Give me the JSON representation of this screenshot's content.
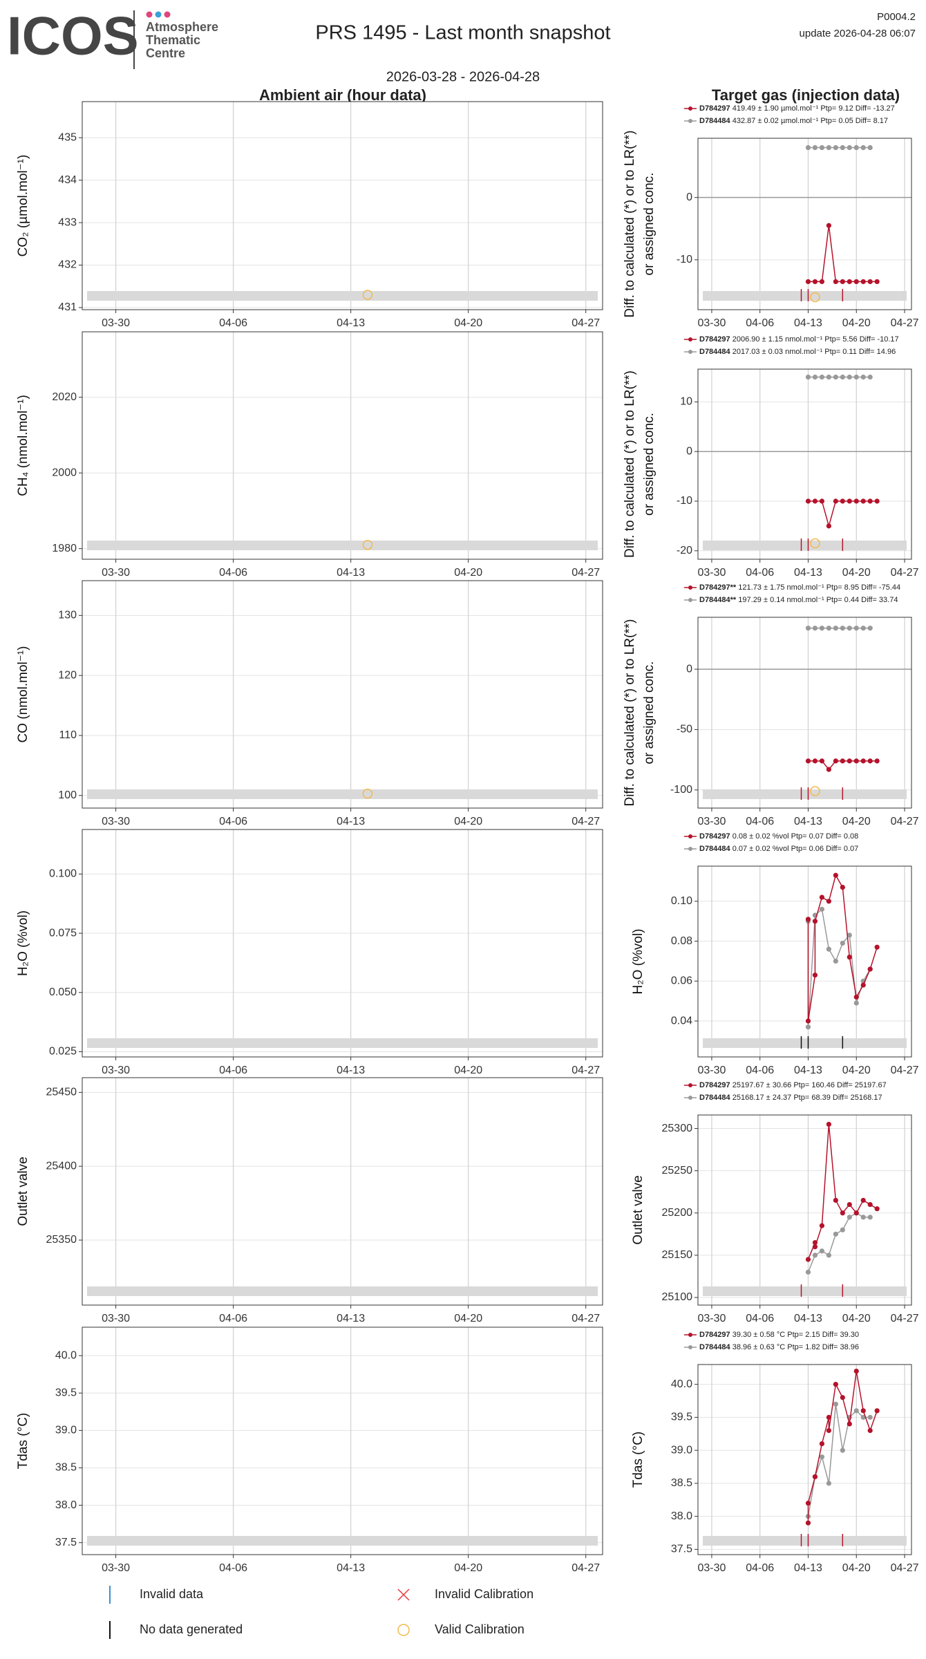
{
  "header": {
    "logo": "ICOS",
    "logo_sub": [
      "Atmosphere",
      "Thematic",
      "Centre"
    ],
    "title": "PRS 1495 - Last month snapshot",
    "date_range": "2026-03-28 - 2026-04-28",
    "code": "P0004.2",
    "update": "update  2026-04-28 06:07",
    "left_title": "Ambient air (hour data)",
    "right_title": "Target gas (injection data)"
  },
  "legend": [
    "Invalid data",
    "No data generated",
    "Invalid Calibration",
    "Valid Calibration"
  ],
  "chart_data": [
    {
      "type": "line",
      "ylabel": "CO₂ (µmol.mol⁻¹)",
      "xlim": [
        "03-28",
        "04-28"
      ],
      "xticks": [
        "03-30",
        "04-06",
        "04-13",
        "04-20",
        "04-27"
      ],
      "ylim": [
        430.95,
        435.85
      ],
      "yticks": [
        431,
        432,
        433,
        434,
        435
      ],
      "grid": true,
      "series": [],
      "calibration": {
        "x": [
          "04-14"
        ],
        "y": [
          431.3
        ],
        "color": "#f2b94a"
      }
    },
    {
      "type": "line",
      "ylabel": [
        "Diff. to calculated (*) or to LR(**)",
        "or assigned conc."
      ],
      "xlim": [
        "03-28",
        "04-28"
      ],
      "xticks": [
        "03-30",
        "04-06",
        "04-13",
        "04-20",
        "04-27"
      ],
      "ylim": [
        -18,
        9.5
      ],
      "yticks": [
        -10,
        0
      ],
      "grid": true,
      "series": [
        {
          "name": "D784297",
          "stats": "419.49 ± 1.90 µmol.mol⁻¹ Ptp= 9.12 Diff= -13.27",
          "color": "#b5122b",
          "x": [
            "04-13",
            "04-14",
            "04-15",
            "04-16",
            "04-17",
            "04-18",
            "04-19",
            "04-20",
            "04-21",
            "04-22",
            "04-23"
          ],
          "values": [
            -13.5,
            -13.5,
            -13.5,
            -4.5,
            -13.5,
            -13.5,
            -13.5,
            -13.5,
            -13.5,
            -13.5,
            -13.5
          ]
        },
        {
          "name": "D784484",
          "stats": "432.87 ± 0.02 µmol.mol⁻¹ Ptp= 0.05 Diff= 8.17",
          "color": "#999999",
          "x": [
            "04-13",
            "04-14",
            "04-15",
            "04-16",
            "04-17",
            "04-18",
            "04-19",
            "04-20",
            "04-21",
            "04-22"
          ],
          "values": [
            8,
            8,
            8,
            8,
            8,
            8,
            8,
            8,
            8,
            8
          ]
        }
      ],
      "flags": {
        "x": [
          "04-12",
          "04-13",
          "04-18"
        ],
        "color": "#b5122b"
      },
      "calibration": {
        "x": [
          "04-14"
        ],
        "y": [
          -16
        ],
        "color": "#f2b94a"
      }
    },
    {
      "type": "line",
      "ylabel": "CH₄ (nmol.mol⁻¹)",
      "xlim": [
        "03-28",
        "04-28"
      ],
      "xticks": [
        "03-30",
        "04-06",
        "04-13",
        "04-20",
        "04-27"
      ],
      "ylim": [
        1977.2,
        2037.3
      ],
      "yticks": [
        1980,
        2000,
        2020
      ],
      "grid": true,
      "series": [],
      "calibration": {
        "x": [
          "04-14"
        ],
        "y": [
          1981
        ],
        "color": "#f2b94a"
      }
    },
    {
      "type": "line",
      "ylabel": [
        "Diff. to calculated (*) or to LR(**)",
        "or assigned conc."
      ],
      "xlim": [
        "03-28",
        "04-28"
      ],
      "xticks": [
        "03-30",
        "04-06",
        "04-13",
        "04-20",
        "04-27"
      ],
      "ylim": [
        -21.7,
        16.6
      ],
      "yticks": [
        -20,
        -10,
        0,
        10
      ],
      "grid": true,
      "series": [
        {
          "name": "D784297",
          "stats": "2006.90 ± 1.15 nmol.mol⁻¹ Ptp= 5.56 Diff= -10.17",
          "color": "#b5122b",
          "x": [
            "04-13",
            "04-14",
            "04-15",
            "04-16",
            "04-17",
            "04-18",
            "04-19",
            "04-20",
            "04-21",
            "04-22",
            "04-23"
          ],
          "values": [
            -10,
            -10,
            -10,
            -15,
            -10,
            -10,
            -10,
            -10,
            -10,
            -10,
            -10
          ]
        },
        {
          "name": "D784484",
          "stats": "2017.03 ± 0.03 nmol.mol⁻¹ Ptp= 0.11 Diff= 14.96",
          "color": "#999999",
          "x": [
            "04-13",
            "04-14",
            "04-15",
            "04-16",
            "04-17",
            "04-18",
            "04-19",
            "04-20",
            "04-21",
            "04-22"
          ],
          "values": [
            15,
            15,
            15,
            15,
            15,
            15,
            15,
            15,
            15,
            15
          ]
        }
      ],
      "flags": {
        "x": [
          "04-12",
          "04-13",
          "04-18"
        ],
        "color": "#b5122b"
      },
      "calibration": {
        "x": [
          "04-14"
        ],
        "y": [
          -18.5
        ],
        "color": "#f2b94a"
      }
    },
    {
      "type": "line",
      "ylabel": "CO (nmol.mol⁻¹)",
      "xlim": [
        "03-28",
        "04-28"
      ],
      "xticks": [
        "03-30",
        "04-06",
        "04-13",
        "04-20",
        "04-27"
      ],
      "ylim": [
        97.9,
        135.8
      ],
      "yticks": [
        100,
        110,
        120,
        130
      ],
      "grid": true,
      "series": [],
      "calibration": {
        "x": [
          "04-14"
        ],
        "y": [
          100.3
        ],
        "color": "#f2b94a"
      }
    },
    {
      "type": "line",
      "ylabel": [
        "Diff. to calculated (*) or to LR(**)",
        "or assigned conc."
      ],
      "xlim": [
        "03-28",
        "04-28"
      ],
      "xticks": [
        "03-30",
        "04-06",
        "04-13",
        "04-20",
        "04-27"
      ],
      "ylim": [
        -115,
        43
      ],
      "yticks": [
        -100,
        -50,
        0
      ],
      "grid": true,
      "series": [
        {
          "name": "D784297**",
          "stats": "121.73 ± 1.75 nmol.mol⁻¹ Ptp= 8.95 Diff= -75.44",
          "color": "#b5122b",
          "x": [
            "04-13",
            "04-14",
            "04-15",
            "04-16",
            "04-17",
            "04-18",
            "04-19",
            "04-20",
            "04-21",
            "04-22",
            "04-23"
          ],
          "values": [
            -76,
            -76,
            -76,
            -83,
            -76,
            -76,
            -76,
            -76,
            -76,
            -76,
            -76
          ]
        },
        {
          "name": "D784484**",
          "stats": "197.29 ± 0.14 nmol.mol⁻¹ Ptp= 0.44 Diff= 33.74",
          "color": "#999999",
          "x": [
            "04-13",
            "04-14",
            "04-15",
            "04-16",
            "04-17",
            "04-18",
            "04-19",
            "04-20",
            "04-21",
            "04-22"
          ],
          "values": [
            34,
            34,
            34,
            34,
            34,
            34,
            34,
            34,
            34,
            34
          ]
        }
      ],
      "flags": {
        "x": [
          "04-12",
          "04-13",
          "04-18"
        ],
        "color": "#b5122b"
      },
      "calibration": {
        "x": [
          "04-14"
        ],
        "y": [
          -101
        ],
        "color": "#f2b94a"
      }
    },
    {
      "type": "line",
      "ylabel": "H₂O (%vol)",
      "xlim": [
        "03-28",
        "04-28"
      ],
      "xticks": [
        "03-30",
        "04-06",
        "04-13",
        "04-20",
        "04-27"
      ],
      "ylim": [
        0.0228,
        0.1188
      ],
      "yticks": [
        {
          "value": 0.025,
          "label": "0.025"
        },
        {
          "value": 0.05,
          "label": "0.050"
        },
        {
          "value": 0.075,
          "label": "0.075"
        },
        {
          "value": 0.1,
          "label": "0.100"
        }
      ],
      "grid": true,
      "series": []
    },
    {
      "type": "line",
      "ylabel": "H₂O (%vol)",
      "xlim": [
        "03-28",
        "04-28"
      ],
      "xticks": [
        "03-30",
        "04-06",
        "04-13",
        "04-20",
        "04-27"
      ],
      "ylim": [
        0.022,
        0.1176
      ],
      "yticks": [
        0.04,
        0.06,
        0.08,
        {
          "value": 0.1,
          "label": "0.10"
        }
      ],
      "grid": true,
      "series": [
        {
          "name": "D784297",
          "stats": "0.08 ± 0.02 %vol Ptp= 0.07 Diff= 0.08",
          "color": "#b5122b",
          "x": [
            "04-13",
            "04-13",
            "04-14",
            "04-14",
            "04-15",
            "04-16",
            "04-17",
            "04-18",
            "04-19",
            "04-20",
            "04-21",
            "04-22",
            "04-23"
          ],
          "values": [
            0.091,
            0.04,
            0.063,
            0.09,
            0.102,
            0.1,
            0.113,
            0.107,
            0.072,
            0.052,
            0.058,
            0.066,
            0.077
          ]
        },
        {
          "name": "D784484",
          "stats": "0.07 ± 0.02 %vol Ptp= 0.06 Diff= 0.07",
          "color": "#999999",
          "x": [
            "04-13",
            "04-13",
            "04-14",
            "04-15",
            "04-16",
            "04-17",
            "04-18",
            "04-19",
            "04-20",
            "04-21",
            "04-22"
          ],
          "values": [
            0.09,
            0.037,
            0.093,
            0.096,
            0.076,
            0.07,
            0.079,
            0.083,
            0.049,
            0.06,
            0.066
          ]
        }
      ],
      "flags": {
        "x": [
          "04-12",
          "04-13",
          "04-18"
        ],
        "color": "#111111"
      }
    },
    {
      "type": "line",
      "ylabel": "Outlet valve",
      "xlim": [
        "03-28",
        "04-28"
      ],
      "xticks": [
        "03-30",
        "04-06",
        "04-13",
        "04-20",
        "04-27"
      ],
      "ylim": [
        25306,
        25460
      ],
      "yticks": [
        25350,
        25400,
        25450
      ],
      "grid": true,
      "series": []
    },
    {
      "type": "line",
      "ylabel": "Outlet valve",
      "xlim": [
        "03-28",
        "04-28"
      ],
      "xticks": [
        "03-30",
        "04-06",
        "04-13",
        "04-20",
        "04-27"
      ],
      "ylim": [
        25091,
        25316
      ],
      "yticks": [
        25100,
        25150,
        25200,
        25250,
        25300
      ],
      "grid": true,
      "series": [
        {
          "name": "D784297",
          "stats": "25197.67 ± 30.66  Ptp= 160.46 Diff= 25197.67",
          "color": "#b5122b",
          "x": [
            "04-13",
            "04-14",
            "04-14",
            "04-15",
            "04-16",
            "04-17",
            "04-18",
            "04-19",
            "04-20",
            "04-21",
            "04-22",
            "04-23"
          ],
          "values": [
            25145,
            25165,
            25160,
            25185,
            25305,
            25215,
            25200,
            25210,
            25200,
            25215,
            25210,
            25205
          ]
        },
        {
          "name": "D784484",
          "stats": "25168.17 ± 24.37  Ptp= 68.39 Diff= 25168.17",
          "color": "#999999",
          "x": [
            "04-13",
            "04-14",
            "04-15",
            "04-16",
            "04-17",
            "04-18",
            "04-19",
            "04-20",
            "04-21",
            "04-22"
          ],
          "values": [
            25130,
            25150,
            25155,
            25150,
            25175,
            25180,
            25195,
            25200,
            25195,
            25195
          ]
        }
      ],
      "flags": {
        "x": [
          "04-12",
          "04-18"
        ],
        "color": "#b5122b"
      }
    },
    {
      "type": "line",
      "ylabel": "Tdas (°C)",
      "xlim": [
        "03-28",
        "04-28"
      ],
      "xticks": [
        "03-30",
        "04-06",
        "04-13",
        "04-20",
        "04-27"
      ],
      "ylim": [
        37.34,
        40.38
      ],
      "yticks": [
        37.5,
        {
          "value": 38,
          "label": "38.0"
        },
        38.5,
        {
          "value": 39,
          "label": "39.0"
        },
        39.5,
        {
          "value": 40,
          "label": "40.0"
        }
      ],
      "grid": true,
      "series": []
    },
    {
      "type": "line",
      "ylabel": "Tdas (°C)",
      "xlim": [
        "03-28",
        "04-28"
      ],
      "xticks": [
        "03-30",
        "04-06",
        "04-13",
        "04-20",
        "04-27"
      ],
      "ylim": [
        37.42,
        40.3
      ],
      "yticks": [
        37.5,
        {
          "value": 38,
          "label": "38.0"
        },
        38.5,
        {
          "value": 39,
          "label": "39.0"
        },
        39.5,
        {
          "value": 40,
          "label": "40.0"
        }
      ],
      "grid": true,
      "series": [
        {
          "name": "D784297",
          "stats": "39.30 ± 0.58 °C Ptp= 2.15 Diff= 39.30",
          "color": "#b5122b",
          "x": [
            "04-13",
            "04-13",
            "04-14",
            "04-15",
            "04-16",
            "04-16",
            "04-17",
            "04-18",
            "04-19",
            "04-20",
            "04-21",
            "04-22",
            "04-23"
          ],
          "values": [
            37.9,
            38.2,
            38.6,
            39.1,
            39.5,
            39.3,
            40.0,
            39.8,
            39.4,
            40.2,
            39.6,
            39.3,
            39.6
          ]
        },
        {
          "name": "D784484",
          "stats": "38.96 ± 0.63 °C Ptp= 1.82 Diff= 38.96",
          "color": "#999999",
          "x": [
            "04-13",
            "04-14",
            "04-15",
            "04-16",
            "04-17",
            "04-18",
            "04-19",
            "04-20",
            "04-21",
            "04-22"
          ],
          "values": [
            38.0,
            38.6,
            38.9,
            38.5,
            39.7,
            39.0,
            39.5,
            39.6,
            39.5,
            39.5
          ]
        }
      ],
      "flags": {
        "x": [
          "04-12",
          "04-13",
          "04-18"
        ],
        "color": "#b5122b"
      }
    }
  ]
}
